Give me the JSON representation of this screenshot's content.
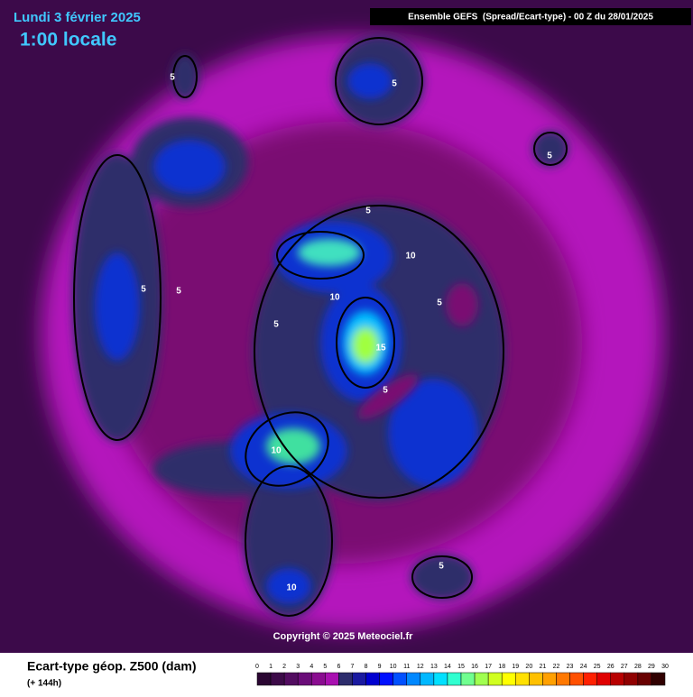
{
  "header": {
    "date": "Lundi 3 février 2025",
    "time": "1:00 locale",
    "model": "Ensemble GEFS  (Spread/Ecart-type) - 00 Z du 28/01/2025"
  },
  "map": {
    "contour_labels": [
      5,
      5,
      5,
      5,
      5,
      5,
      5,
      5,
      5,
      5,
      10,
      10,
      10,
      10,
      15
    ]
  },
  "footer": {
    "copyright": "Copyright © 2025 Meteociel.fr"
  },
  "legend": {
    "title": "Ecart-type géop. Z500 (dam)",
    "lead": "(+ 144h)",
    "ticks": [
      0,
      1,
      2,
      3,
      4,
      5,
      6,
      7,
      8,
      9,
      10,
      11,
      12,
      13,
      14,
      15,
      16,
      17,
      18,
      19,
      20,
      21,
      22,
      23,
      24,
      25,
      26,
      27,
      28,
      29,
      30
    ],
    "colors": [
      "#2a0632",
      "#3c0a48",
      "#520c60",
      "#6a0c78",
      "#8a0c90",
      "#a810b0",
      "#2c2c6c",
      "#1a1aa0",
      "#0000d0",
      "#0010ff",
      "#0050ff",
      "#0088ff",
      "#00b8ff",
      "#00e0ff",
      "#30ffd0",
      "#70ff90",
      "#a0ff50",
      "#d0ff20",
      "#ffff00",
      "#ffe000",
      "#ffc000",
      "#ffa000",
      "#ff7800",
      "#ff5000",
      "#ff2000",
      "#e00000",
      "#b80000",
      "#900000",
      "#680000",
      "#300000"
    ]
  }
}
